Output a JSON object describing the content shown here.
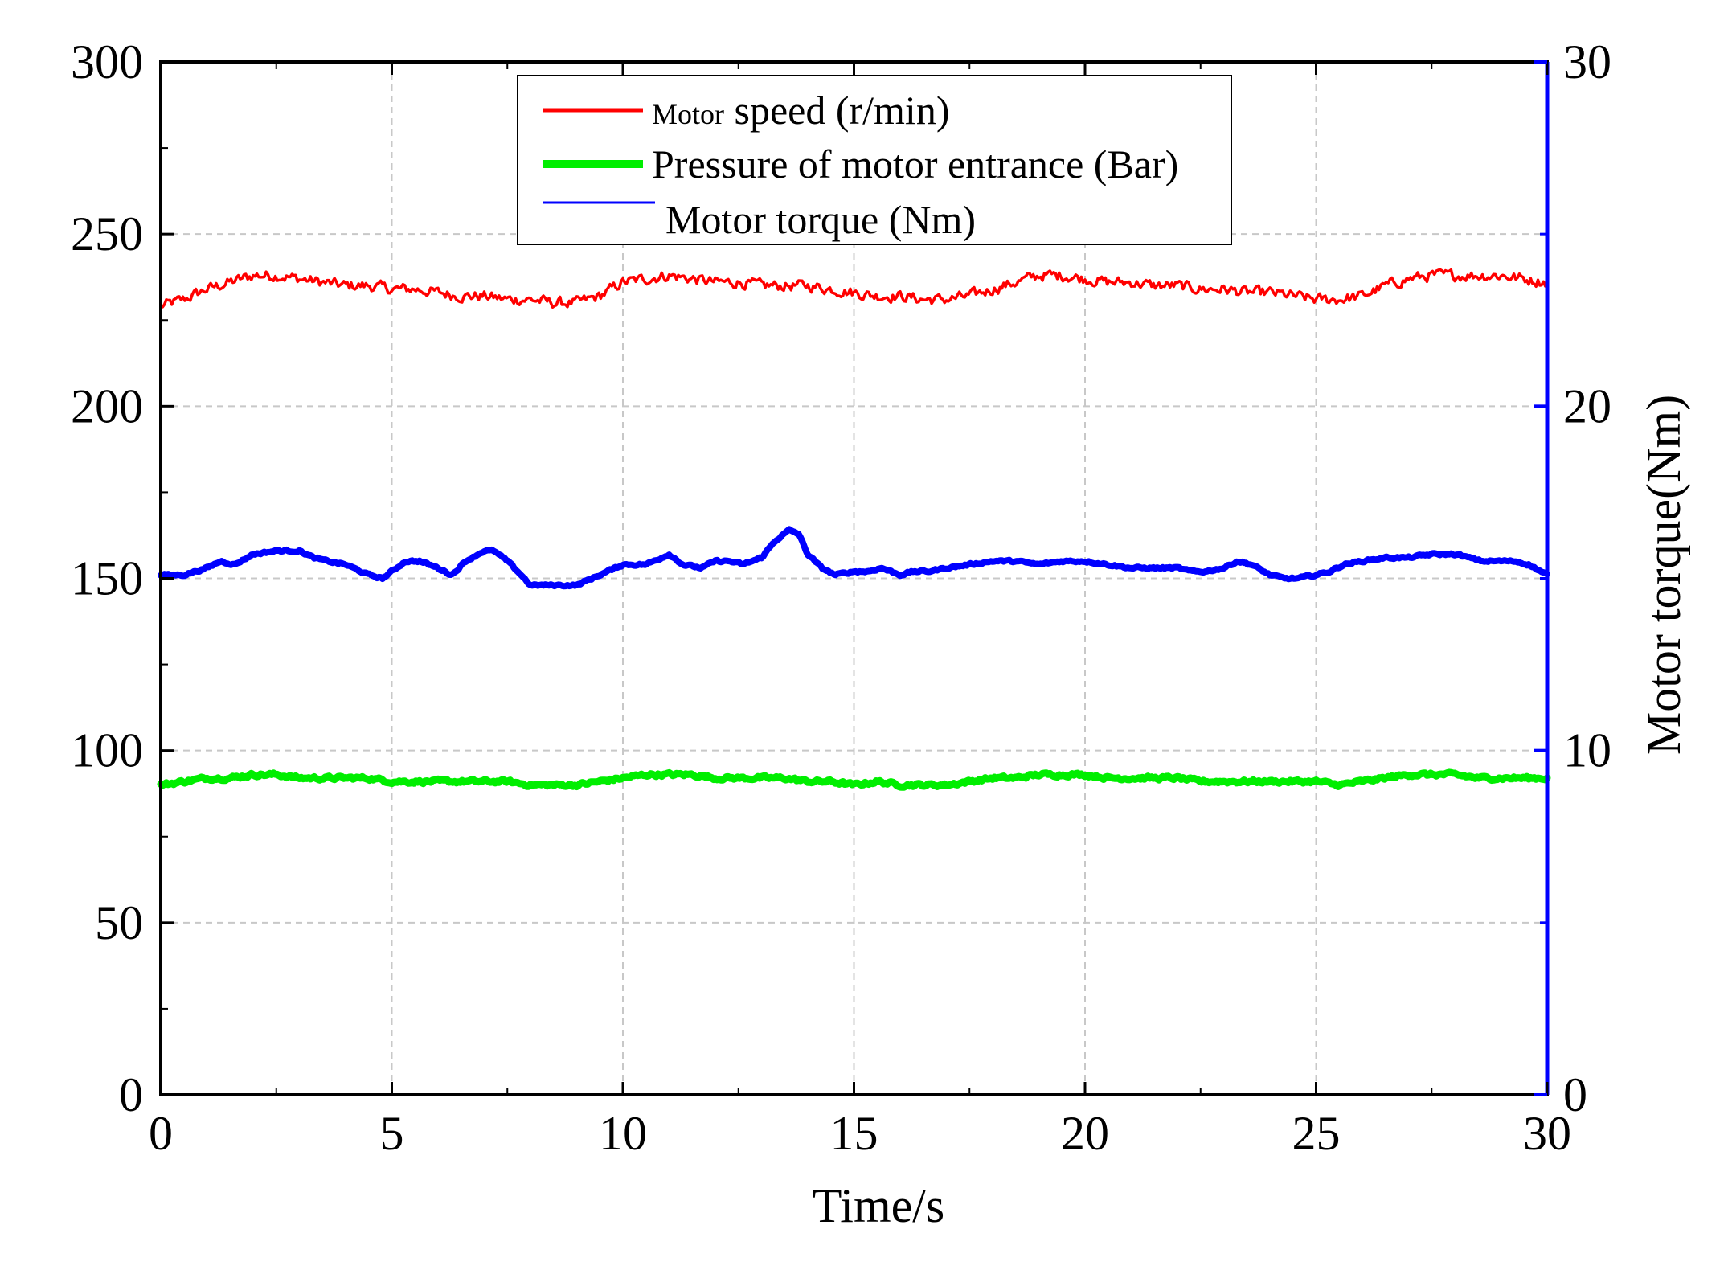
{
  "chart_data": {
    "type": "line",
    "xlabel": "Time/s",
    "ylabel_left": "",
    "ylabel_right": "Motor torque(Nm)",
    "xlim": [
      0,
      30
    ],
    "ylim_left": [
      0,
      300
    ],
    "ylim_right": [
      0,
      30
    ],
    "x_ticks": [
      "0",
      "5",
      "10",
      "15",
      "20",
      "25",
      "30"
    ],
    "y_ticks_left": [
      "0",
      "50",
      "100",
      "150",
      "200",
      "250",
      "300"
    ],
    "y_ticks_right": [
      "0",
      "10",
      "20",
      "30"
    ],
    "grid": true,
    "legend": {
      "position": "top-center",
      "speed_prefix": "Motor",
      "speed_suffix": " speed (r/min)",
      "pressure": "Pressure of motor entrance (Bar)",
      "torque": "Motor torque (Nm)"
    },
    "series": [
      {
        "name": "Motor speed (r/min)",
        "axis": "left",
        "color": "#ff0000",
        "noise": 2.5,
        "x": [
          0,
          0.5,
          1,
          1.5,
          2,
          2.5,
          3,
          3.5,
          4,
          4.5,
          5,
          5.5,
          6,
          6.5,
          7,
          7.5,
          8,
          8.5,
          9,
          9.5,
          10,
          10.5,
          11,
          11.5,
          12,
          12.5,
          13,
          13.5,
          14,
          14.5,
          15,
          15.5,
          16,
          16.5,
          17,
          17.5,
          18,
          18.5,
          19,
          19.5,
          20,
          20.5,
          21,
          21.5,
          22,
          22.5,
          23,
          23.5,
          24,
          24.5,
          25,
          25.5,
          26,
          26.5,
          27,
          27.5,
          28,
          28.5,
          29,
          29.5,
          30
        ],
        "values": [
          229,
          231,
          234,
          236,
          238,
          238,
          237,
          236,
          235,
          235,
          234,
          234,
          233,
          232,
          232,
          231,
          231,
          230,
          230,
          232,
          236,
          237,
          238,
          237,
          236,
          236,
          235,
          235,
          235,
          234,
          233,
          232,
          232,
          231,
          231,
          232,
          234,
          236,
          238,
          238,
          237,
          236,
          236,
          235,
          235,
          234,
          234,
          233,
          233,
          232,
          231,
          231,
          232,
          235,
          237,
          238,
          238,
          238,
          238,
          237,
          236
        ]
      },
      {
        "name": "Pressure of motor entrance (Bar)",
        "axis": "left",
        "color": "#00ee00",
        "noise": 0.8,
        "x": [
          0,
          0.5,
          1,
          1.5,
          2,
          2.5,
          3,
          3.5,
          4,
          4.5,
          5,
          5.5,
          6,
          6.5,
          7,
          7.5,
          8,
          8.5,
          9,
          9.5,
          10,
          10.5,
          11,
          11.5,
          12,
          12.5,
          13,
          13.5,
          14,
          14.5,
          15,
          15.5,
          16,
          16.5,
          17,
          17.5,
          18,
          18.5,
          19,
          19.5,
          20,
          20.5,
          21,
          21.5,
          22,
          22.5,
          23,
          23.5,
          24,
          24.5,
          25,
          25.5,
          26,
          26.5,
          27,
          27.5,
          28,
          28.5,
          29,
          29.5,
          30
        ],
        "values": [
          90,
          91,
          92,
          92,
          93,
          93,
          92,
          92,
          92,
          92,
          91,
          91,
          91,
          91,
          91,
          91,
          90,
          90,
          90,
          91,
          92,
          93,
          93,
          93,
          92,
          92,
          92,
          92,
          91,
          91,
          90,
          91,
          90,
          90,
          90,
          91,
          92,
          92,
          93,
          93,
          93,
          92,
          92,
          92,
          92,
          91,
          91,
          91,
          91,
          91,
          91,
          90,
          91,
          92,
          93,
          93,
          93,
          92,
          92,
          92,
          92
        ]
      },
      {
        "name": "Motor torque (Nm)",
        "axis": "right",
        "color": "#0000ff",
        "noise": 0.05,
        "x": [
          0,
          0.5,
          1,
          1.3,
          1.6,
          2,
          2.5,
          3,
          3.3,
          3.6,
          4,
          4.5,
          4.8,
          5,
          5.3,
          5.6,
          6,
          6.3,
          6.6,
          7,
          7.2,
          7.5,
          7.8,
          8,
          8.5,
          9,
          9.5,
          10,
          10.5,
          11,
          11.3,
          11.7,
          12,
          12.3,
          12.6,
          13,
          13.3,
          13.6,
          13.8,
          14,
          14.3,
          14.6,
          15,
          15.3,
          15.6,
          16,
          16.3,
          16.6,
          17,
          17.5,
          18,
          18.5,
          19,
          19.5,
          20,
          20.5,
          21,
          21.5,
          22,
          22.3,
          22.6,
          23,
          23.3,
          23.6,
          24,
          24.3,
          24.6,
          25,
          25.3,
          25.6,
          26,
          26.5,
          27,
          27.5,
          28,
          28.3,
          28.6,
          29,
          29.3,
          29.6,
          30
        ],
        "values": [
          15.1,
          15.1,
          15.3,
          15.5,
          15.4,
          15.7,
          15.8,
          15.8,
          15.6,
          15.5,
          15.4,
          15.1,
          15.0,
          15.2,
          15.5,
          15.5,
          15.3,
          15.1,
          15.5,
          15.8,
          15.8,
          15.5,
          15.1,
          14.8,
          14.8,
          14.8,
          15.1,
          15.4,
          15.4,
          15.7,
          15.4,
          15.3,
          15.5,
          15.5,
          15.4,
          15.6,
          16.1,
          16.4,
          16.3,
          15.7,
          15.3,
          15.1,
          15.2,
          15.2,
          15.3,
          15.1,
          15.2,
          15.2,
          15.3,
          15.4,
          15.5,
          15.5,
          15.4,
          15.5,
          15.5,
          15.4,
          15.3,
          15.3,
          15.3,
          15.2,
          15.2,
          15.3,
          15.5,
          15.4,
          15.1,
          15.0,
          15.0,
          15.1,
          15.2,
          15.4,
          15.5,
          15.6,
          15.6,
          15.7,
          15.7,
          15.6,
          15.5,
          15.5,
          15.5,
          15.4,
          15.1
        ]
      }
    ]
  }
}
